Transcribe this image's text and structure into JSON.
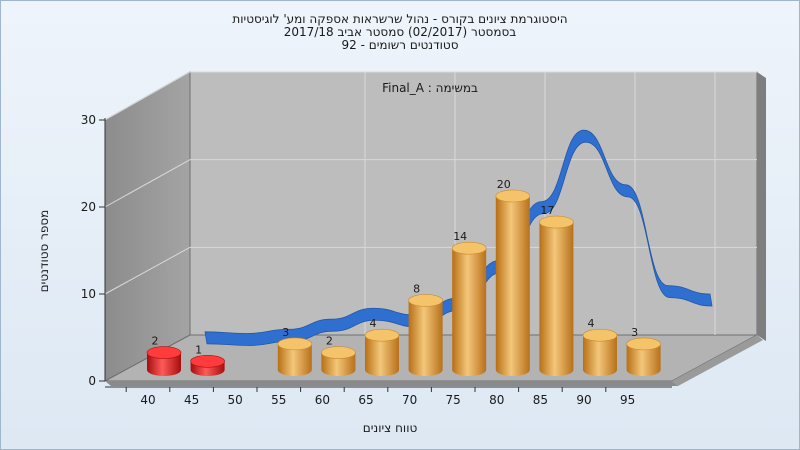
{
  "titles": [
    "היסטוגרמת ציונים בקורס - נהול שרשראות אספקה ומע' לוגיסטיות",
    "בסמסטר  (02/2017)  סמסטר אביב 2017/18",
    "סטודנטים רשומים - 92"
  ],
  "chart_data": {
    "type": "bar",
    "title": "היסטוגרמת ציונים בקורס - נהול שרשראות אספקה ומע' לוגיסטיות",
    "subtitle": "בסמסטר  (02/2017)  סמסטר אביב 2017/18",
    "subtitle2": "סטודנטים רשומים - 92",
    "annotation": "במשימה : Final_A",
    "xlabel": "טווח ציונים",
    "ylabel": "מספר סטודנטים",
    "x_ticks": [
      "40",
      "45",
      "50",
      "55",
      "60",
      "65",
      "70",
      "75",
      "80",
      "85",
      "90",
      "95"
    ],
    "y_ticks": [
      0,
      10,
      20,
      30
    ],
    "ylim": [
      0,
      30
    ],
    "grid": true,
    "bars": [
      {
        "x": 40,
        "value": 2,
        "label": "2",
        "color": "#e01b1b"
      },
      {
        "x": 45,
        "value": 1,
        "label": "1",
        "color": "#e01b1b"
      },
      {
        "x": 55,
        "value": 3,
        "label": "3",
        "color": "#e8a23a"
      },
      {
        "x": 60,
        "value": 2,
        "label": "2",
        "color": "#e8a23a"
      },
      {
        "x": 65,
        "value": 4,
        "label": "4",
        "color": "#e8a23a"
      },
      {
        "x": 70,
        "value": 8,
        "label": "8",
        "color": "#e8a23a"
      },
      {
        "x": 75,
        "value": 14,
        "label": "14",
        "color": "#e8a23a"
      },
      {
        "x": 80,
        "value": 20,
        "label": "20",
        "color": "#e8a23a"
      },
      {
        "x": 85,
        "value": 17,
        "label": "17",
        "color": "#e8a23a"
      },
      {
        "x": 90,
        "value": 4,
        "label": "4",
        "color": "#e8a23a"
      },
      {
        "x": 95,
        "value": 3,
        "label": "3",
        "color": "#e8a23a"
      }
    ],
    "curve": {
      "color": "#2f6fcf",
      "points": [
        [
          40,
          0.5
        ],
        [
          45,
          0.3
        ],
        [
          50,
          0.8
        ],
        [
          55,
          2.0
        ],
        [
          60,
          3.3
        ],
        [
          65,
          2.5
        ],
        [
          70,
          4.5
        ],
        [
          75,
          9.0
        ],
        [
          80,
          16.0
        ],
        [
          85,
          24.5
        ],
        [
          90,
          18.0
        ],
        [
          95,
          6.0
        ],
        [
          100,
          5.0
        ]
      ]
    }
  }
}
